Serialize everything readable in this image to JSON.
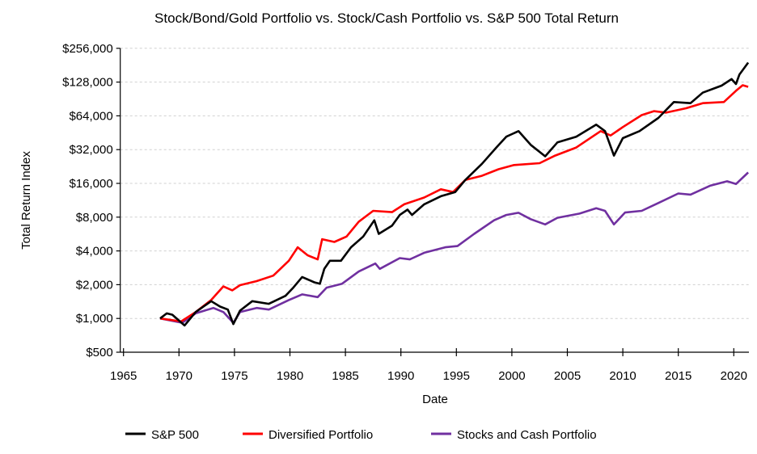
{
  "chart_data": {
    "type": "line",
    "title": "Stock/Bond/Gold Portfolio vs. Stock/Cash Portfolio vs. S&P 500 Total Return",
    "xlabel": "Date",
    "ylabel": "Total Return Index",
    "yscale": "log2",
    "ylim": [
      500,
      256000
    ],
    "xlim": [
      1965,
      2021.3
    ],
    "grid": true,
    "legend_position": "bottom",
    "x_ticks": [
      "1965",
      "1970",
      "1975",
      "1980",
      "1985",
      "1990",
      "1995",
      "2000",
      "2005",
      "2010",
      "2015",
      "2020"
    ],
    "y_ticks": [
      {
        "value": 500,
        "label": "$500"
      },
      {
        "value": 1000,
        "label": "$1,000"
      },
      {
        "value": 2000,
        "label": "$2,000"
      },
      {
        "value": 4000,
        "label": "$4,000"
      },
      {
        "value": 8000,
        "label": "$8,000"
      },
      {
        "value": 16000,
        "label": "$16,000"
      },
      {
        "value": 32000,
        "label": "$32,000"
      },
      {
        "value": 64000,
        "label": "$64,000"
      },
      {
        "value": 128000,
        "label": "$128,000"
      },
      {
        "value": 256000,
        "label": "$256,000"
      }
    ],
    "series": [
      {
        "name": "S&P 500",
        "color": "#000000",
        "points": [
          [
            1968.3,
            1000
          ],
          [
            1968.9,
            1110
          ],
          [
            1969.4,
            1080
          ],
          [
            1970.5,
            866
          ],
          [
            1971.5,
            1140
          ],
          [
            1972.9,
            1425
          ],
          [
            1973.7,
            1275
          ],
          [
            1974.4,
            1200
          ],
          [
            1974.9,
            890
          ],
          [
            1975.5,
            1175
          ],
          [
            1976.6,
            1425
          ],
          [
            1978.1,
            1350
          ],
          [
            1979.6,
            1590
          ],
          [
            1980.3,
            1880
          ],
          [
            1981.1,
            2340
          ],
          [
            1982.2,
            2100
          ],
          [
            1982.7,
            2040
          ],
          [
            1983.1,
            2770
          ],
          [
            1983.6,
            3270
          ],
          [
            1984.6,
            3270
          ],
          [
            1985.5,
            4310
          ],
          [
            1986.6,
            5370
          ],
          [
            1987.6,
            7500
          ],
          [
            1988.0,
            5680
          ],
          [
            1989.2,
            6710
          ],
          [
            1989.9,
            8370
          ],
          [
            1990.6,
            9330
          ],
          [
            1991.0,
            8370
          ],
          [
            1992.1,
            10420
          ],
          [
            1993.6,
            12300
          ],
          [
            1994.9,
            13400
          ],
          [
            1995.8,
            17160
          ],
          [
            1997.3,
            23900
          ],
          [
            1998.6,
            33400
          ],
          [
            1999.5,
            41700
          ],
          [
            2000.6,
            46800
          ],
          [
            2001.7,
            35300
          ],
          [
            2003.0,
            27900
          ],
          [
            2004.1,
            37100
          ],
          [
            2005.8,
            41700
          ],
          [
            2007.6,
            53400
          ],
          [
            2008.4,
            46800
          ],
          [
            2009.2,
            28300
          ],
          [
            2010.0,
            40500
          ],
          [
            2011.5,
            46800
          ],
          [
            2013.2,
            61300
          ],
          [
            2014.6,
            85000
          ],
          [
            2016.1,
            83000
          ],
          [
            2017.2,
            103000
          ],
          [
            2018.9,
            119000
          ],
          [
            2019.8,
            136000
          ],
          [
            2020.2,
            123000
          ],
          [
            2020.5,
            149000
          ],
          [
            2021.3,
            191000
          ]
        ]
      },
      {
        "name": "Diversified Portfolio",
        "color": "#ff0000",
        "points": [
          [
            1968.3,
            1000
          ],
          [
            1970.2,
            940
          ],
          [
            1971.5,
            1140
          ],
          [
            1972.9,
            1460
          ],
          [
            1974.0,
            1930
          ],
          [
            1974.8,
            1780
          ],
          [
            1975.5,
            1980
          ],
          [
            1977.0,
            2150
          ],
          [
            1978.5,
            2410
          ],
          [
            1979.9,
            3270
          ],
          [
            1980.7,
            4310
          ],
          [
            1981.6,
            3650
          ],
          [
            1982.5,
            3360
          ],
          [
            1982.9,
            5090
          ],
          [
            1984.0,
            4810
          ],
          [
            1985.1,
            5370
          ],
          [
            1986.2,
            7290
          ],
          [
            1987.5,
            9110
          ],
          [
            1989.2,
            8860
          ],
          [
            1990.3,
            10420
          ],
          [
            1992.1,
            11960
          ],
          [
            1993.6,
            14180
          ],
          [
            1994.7,
            13400
          ],
          [
            1995.8,
            17160
          ],
          [
            1997.3,
            18700
          ],
          [
            1998.8,
            21400
          ],
          [
            2000.2,
            23300
          ],
          [
            2002.5,
            24200
          ],
          [
            2003.9,
            28300
          ],
          [
            2005.8,
            33400
          ],
          [
            2008.0,
            46800
          ],
          [
            2008.9,
            42800
          ],
          [
            2010.0,
            50800
          ],
          [
            2011.7,
            65000
          ],
          [
            2012.8,
            70500
          ],
          [
            2013.9,
            68400
          ],
          [
            2015.7,
            74800
          ],
          [
            2017.2,
            83000
          ],
          [
            2019.1,
            85000
          ],
          [
            2020.2,
            107000
          ],
          [
            2020.8,
            120000
          ],
          [
            2021.3,
            116000
          ]
        ]
      },
      {
        "name": "Stocks and Cash Portfolio",
        "color": "#7030a0",
        "points": [
          [
            1968.3,
            1000
          ],
          [
            1970.3,
            915
          ],
          [
            1971.5,
            1110
          ],
          [
            1973.1,
            1240
          ],
          [
            1974.0,
            1140
          ],
          [
            1974.9,
            915
          ],
          [
            1975.5,
            1140
          ],
          [
            1977.0,
            1240
          ],
          [
            1978.1,
            1200
          ],
          [
            1979.9,
            1460
          ],
          [
            1981.1,
            1640
          ],
          [
            1982.5,
            1550
          ],
          [
            1983.3,
            1880
          ],
          [
            1984.7,
            2040
          ],
          [
            1986.2,
            2620
          ],
          [
            1987.7,
            3090
          ],
          [
            1988.1,
            2770
          ],
          [
            1989.9,
            3450
          ],
          [
            1990.8,
            3360
          ],
          [
            1992.1,
            3850
          ],
          [
            1994.0,
            4310
          ],
          [
            1995.1,
            4420
          ],
          [
            1996.6,
            5680
          ],
          [
            1998.4,
            7500
          ],
          [
            1999.5,
            8370
          ],
          [
            2000.6,
            8750
          ],
          [
            2001.7,
            7680
          ],
          [
            2003.0,
            6890
          ],
          [
            2004.1,
            7900
          ],
          [
            2006.1,
            8610
          ],
          [
            2007.6,
            9600
          ],
          [
            2008.4,
            9100
          ],
          [
            2009.2,
            6890
          ],
          [
            2010.2,
            8800
          ],
          [
            2011.7,
            9100
          ],
          [
            2013.2,
            10700
          ],
          [
            2015.0,
            13000
          ],
          [
            2016.1,
            12700
          ],
          [
            2017.9,
            15300
          ],
          [
            2019.4,
            16700
          ],
          [
            2020.2,
            15800
          ],
          [
            2021.3,
            20000
          ]
        ]
      }
    ]
  }
}
